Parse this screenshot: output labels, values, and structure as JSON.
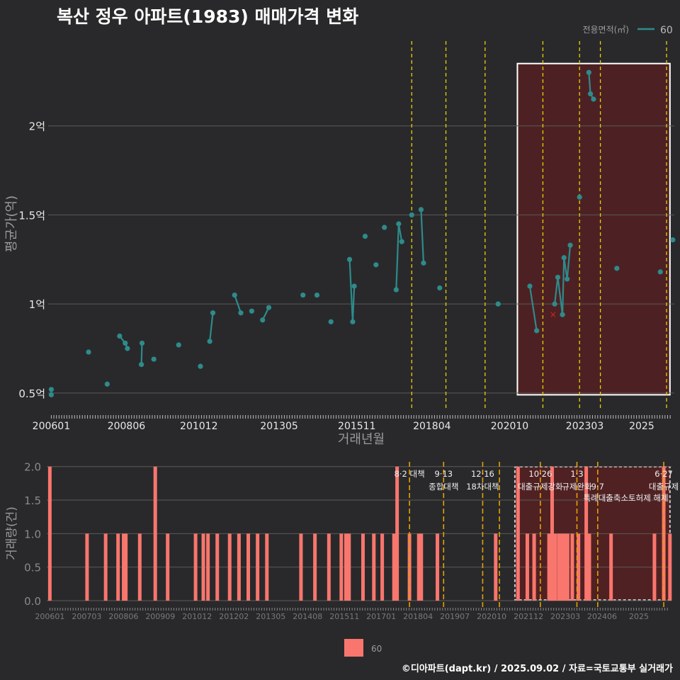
{
  "title": "복산 정우 아파트(1983) 매매가격 변화",
  "footer": "©디아파트(dapt.kr) / 2025.09.02 / 자료=국토교통부 실거래가",
  "colors": {
    "background": "#29292b",
    "line": "#2e8b8b",
    "bar": "#f8766d",
    "policy_line_yellow": "#e6d200",
    "policy_line_orange": "#e6a000",
    "highlight_fill": "#5a1f22",
    "grid": "#5a5a5a",
    "cancel_marker": "#e02020"
  },
  "chart_data": [
    {
      "type": "line",
      "title": "평균가(억) by 거래년월",
      "xlabel": "거래년월",
      "ylabel": "평균가(억)",
      "ylim": [
        0.4,
        2.5
      ],
      "y_ticks": [
        0.5,
        1,
        1.5,
        2
      ],
      "y_tick_labels": [
        "0.5억",
        "1억",
        "1.5억",
        "2억"
      ],
      "x_ticks": [
        2006.0,
        2008.417,
        2010.75,
        2013.333,
        2015.833,
        2018.25,
        2020.75,
        2023.167,
        2025.0
      ],
      "x_tick_labels": [
        "200601",
        "200806",
        "201012",
        "201305",
        "201511",
        "201804",
        "202010",
        "202303",
        "2025"
      ],
      "legend": {
        "title": "전용면적(㎡)",
        "entries": [
          "60"
        ],
        "position": "top-right"
      },
      "series": [
        {
          "name": "60",
          "points": [
            [
              2006.0,
              0.52
            ],
            [
              2006.0,
              0.49
            ],
            [
              2007.2,
              0.73
            ],
            [
              2007.8,
              0.55
            ],
            [
              2008.2,
              0.82
            ],
            [
              2008.38,
              0.78
            ],
            [
              2008.45,
              0.75
            ],
            [
              2008.9,
              0.66
            ],
            [
              2008.92,
              0.78
            ],
            [
              2009.3,
              0.69
            ],
            [
              2010.1,
              0.77
            ],
            [
              2010.8,
              0.65
            ],
            [
              2011.1,
              0.79
            ],
            [
              2011.2,
              0.95
            ],
            [
              2011.9,
              1.05
            ],
            [
              2012.1,
              0.95
            ],
            [
              2012.45,
              0.96
            ],
            [
              2012.8,
              0.91
            ],
            [
              2013.0,
              0.98
            ],
            [
              2014.1,
              1.05
            ],
            [
              2014.55,
              1.05
            ],
            [
              2015.0,
              0.9
            ],
            [
              2015.6,
              1.25
            ],
            [
              2015.7,
              0.9
            ],
            [
              2015.75,
              1.1
            ],
            [
              2016.1,
              1.38
            ],
            [
              2016.45,
              1.22
            ],
            [
              2016.72,
              1.43
            ],
            [
              2017.1,
              1.08
            ],
            [
              2017.18,
              1.45
            ],
            [
              2017.28,
              1.35
            ],
            [
              2017.6,
              1.5
            ],
            [
              2017.9,
              1.53
            ],
            [
              2017.98,
              1.23
            ],
            [
              2018.5,
              1.09
            ],
            [
              2020.38,
              1.0
            ],
            [
              2021.4,
              1.1
            ],
            [
              2021.62,
              0.85
            ],
            [
              2022.2,
              1.0
            ],
            [
              2022.3,
              1.15
            ],
            [
              2022.45,
              0.94
            ],
            [
              2022.5,
              1.26
            ],
            [
              2022.6,
              1.14
            ],
            [
              2022.7,
              1.33
            ],
            [
              2023.0,
              1.6
            ],
            [
              2023.3,
              2.3
            ],
            [
              2023.35,
              2.18
            ],
            [
              2023.45,
              2.15
            ],
            [
              2024.2,
              1.2
            ],
            [
              2025.6,
              1.18
            ],
            [
              2026.0,
              1.36
            ]
          ]
        }
      ],
      "cancelled_marker": [
        2022.15,
        0.94
      ],
      "policy_lines": [
        {
          "x": 2017.6,
          "label": "8·2 대책"
        },
        {
          "x": 2018.7,
          "label": "9·13 종합대책"
        },
        {
          "x": 2019.96,
          "label": "12·16 18차 대책"
        },
        {
          "x": 2021.82,
          "label": "10·26 대출규제강화"
        },
        {
          "x": 2023.0,
          "label": "1·3 규제완화"
        },
        {
          "x": 2023.67,
          "label": "9·7"
        },
        {
          "x": 2025.8,
          "label": "6·27 대출규제"
        }
      ],
      "highlight_range": [
        2021.0,
        2026.0
      ]
    },
    {
      "type": "bar",
      "title": "거래량(건) by 거래년월",
      "xlabel": "",
      "ylabel": "거래량(건)",
      "ylim": [
        0,
        2
      ],
      "y_ticks": [
        0,
        0.5,
        1,
        1.5,
        2
      ],
      "y_tick_labels": [
        "0.0",
        "0.5",
        "1.0",
        "1.5",
        "2.0"
      ],
      "x_tick_labels": [
        "200601",
        "200703",
        "200806",
        "200909",
        "201012",
        "201202",
        "201305",
        "201408",
        "201511",
        "201701",
        "201804",
        "201907",
        "202010",
        "202112",
        "202303",
        "202406",
        "2025"
      ],
      "legend": {
        "entries": [
          "60"
        ],
        "position": "bottom"
      },
      "series": [
        {
          "name": "60",
          "bars": [
            [
              2006.0,
              2
            ],
            [
              2007.2,
              1
            ],
            [
              2007.8,
              1
            ],
            [
              2008.2,
              1
            ],
            [
              2008.38,
              1
            ],
            [
              2008.45,
              1
            ],
            [
              2008.9,
              1
            ],
            [
              2009.4,
              2
            ],
            [
              2009.8,
              1
            ],
            [
              2010.7,
              1
            ],
            [
              2010.95,
              1
            ],
            [
              2011.1,
              1
            ],
            [
              2011.4,
              1
            ],
            [
              2011.8,
              1
            ],
            [
              2012.1,
              1
            ],
            [
              2012.4,
              1
            ],
            [
              2012.7,
              1
            ],
            [
              2013.0,
              1
            ],
            [
              2014.1,
              1
            ],
            [
              2014.55,
              1
            ],
            [
              2015.0,
              1
            ],
            [
              2015.4,
              1
            ],
            [
              2015.55,
              1
            ],
            [
              2015.65,
              1
            ],
            [
              2016.1,
              1
            ],
            [
              2016.45,
              1
            ],
            [
              2016.72,
              1
            ],
            [
              2017.1,
              1
            ],
            [
              2017.2,
              2
            ],
            [
              2017.6,
              1
            ],
            [
              2017.9,
              1
            ],
            [
              2017.98,
              1
            ],
            [
              2018.5,
              1
            ],
            [
              2020.38,
              1
            ],
            [
              2021.1,
              2
            ],
            [
              2021.4,
              1
            ],
            [
              2021.62,
              1
            ],
            [
              2022.1,
              1
            ],
            [
              2022.2,
              2
            ],
            [
              2022.3,
              1
            ],
            [
              2022.42,
              1
            ],
            [
              2022.5,
              1
            ],
            [
              2022.6,
              1
            ],
            [
              2022.7,
              1
            ],
            [
              2022.85,
              1
            ],
            [
              2023.05,
              1
            ],
            [
              2023.3,
              2
            ],
            [
              2023.4,
              1
            ],
            [
              2024.1,
              1
            ],
            [
              2025.5,
              1
            ],
            [
              2025.8,
              2
            ],
            [
              2026.0,
              1
            ]
          ]
        }
      ],
      "policy_lines": [
        {
          "x": 2017.6,
          "label1": "8·2 대책",
          "label2": ""
        },
        {
          "x": 2018.7,
          "label1": "9·13",
          "label2": "종합대책"
        },
        {
          "x": 2019.96,
          "label1": "12·16",
          "label2": "18차대책"
        },
        {
          "x": 2020.5,
          "label1": "",
          "label2": ""
        },
        {
          "x": 2021.82,
          "label1": "10·26",
          "label2": "대출규제강화"
        },
        {
          "x": 2023.0,
          "label1": "1·3",
          "label2": "규제완화"
        },
        {
          "x": 2023.67,
          "label1": "",
          "label2": "9·7"
        },
        {
          "x": 2025.8,
          "label1": "6·27",
          "label2": "대출규제"
        }
      ],
      "extra_label": "특례대출축소토허제 해제",
      "highlight_range": [
        2021.0,
        2026.0
      ]
    }
  ]
}
